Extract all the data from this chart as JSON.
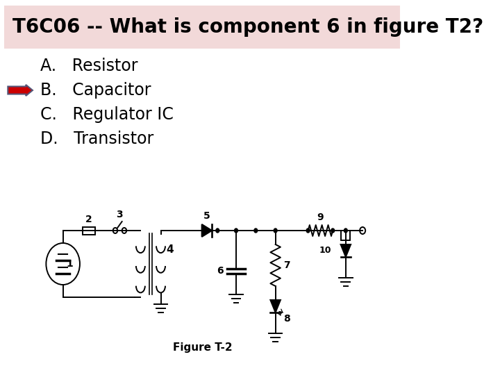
{
  "title": "T6C06 -- What is component 6 in figure T2?",
  "title_bg": "#f2d9d9",
  "title_fontsize": 20,
  "title_fontweight": "bold",
  "options": [
    "A.   Resistor",
    "B.   Capacitor",
    "C.   Regulator IC",
    "D.   Transistor"
  ],
  "correct_index": 1,
  "arrow_color_fill": "#cc0000",
  "arrow_color_edge": "#555577",
  "option_fontsize": 17,
  "bg_color": "#ffffff",
  "fig_label": "Figure T-2"
}
